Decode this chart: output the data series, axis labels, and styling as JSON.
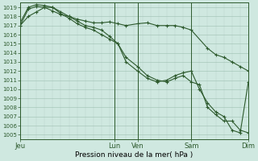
{
  "title": "",
  "xlabel": "Pression niveau de la mer( hPa )",
  "bg_color": "#cfe8e0",
  "line_color": "#2d5a2d",
  "marker_color": "#2d5a2d",
  "ylim": [
    1005,
    1019
  ],
  "ytick_min": 1005,
  "ytick_max": 1019,
  "xlim": [
    0,
    14
  ],
  "day_labels": [
    "Jeu",
    "Lun",
    "Ven",
    "Sam",
    "Dim"
  ],
  "day_positions": [
    0.0,
    5.8,
    7.2,
    10.5,
    14.0
  ],
  "series": [
    {
      "x": [
        0.0,
        0.5,
        1.0,
        1.5,
        2.0,
        2.5,
        3.0,
        3.5,
        4.0,
        4.5,
        5.0,
        5.5,
        6.0,
        6.5,
        7.2,
        7.8,
        8.4,
        9.0,
        9.5,
        10.0,
        10.5,
        11.5,
        12.0,
        12.5,
        13.0,
        13.5,
        14.0
      ],
      "y": [
        1017.0,
        1018.8,
        1019.1,
        1019.0,
        1018.6,
        1018.2,
        1018.0,
        1017.7,
        1017.5,
        1017.3,
        1017.3,
        1017.4,
        1017.2,
        1017.0,
        1017.2,
        1017.3,
        1017.0,
        1017.0,
        1017.0,
        1016.8,
        1016.5,
        1014.5,
        1013.8,
        1013.5,
        1013.0,
        1012.5,
        1012.0
      ]
    },
    {
      "x": [
        0.0,
        0.5,
        1.0,
        1.5,
        2.0,
        2.5,
        3.0,
        3.5,
        4.0,
        4.5,
        5.0,
        5.5,
        6.0,
        6.5,
        7.2,
        7.8,
        8.4,
        9.0,
        9.5,
        10.0,
        10.5,
        11.0,
        11.5,
        12.0,
        12.5,
        13.0,
        13.5,
        14.0
      ],
      "y": [
        1017.0,
        1018.0,
        1018.5,
        1019.0,
        1019.0,
        1018.3,
        1017.8,
        1017.2,
        1016.8,
        1016.5,
        1016.0,
        1015.5,
        1015.0,
        1013.5,
        1012.5,
        1011.5,
        1011.0,
        1010.8,
        1011.2,
        1011.5,
        1010.8,
        1010.5,
        1008.0,
        1007.2,
        1006.5,
        1006.5,
        1005.5,
        1005.2
      ]
    },
    {
      "x": [
        0.0,
        0.5,
        1.0,
        1.5,
        2.0,
        2.5,
        3.0,
        3.5,
        4.0,
        4.5,
        5.0,
        5.5,
        6.0,
        6.5,
        7.2,
        7.8,
        8.4,
        9.0,
        9.5,
        10.0,
        10.5,
        11.0,
        11.5,
        12.0,
        12.5,
        13.0,
        13.5,
        14.0
      ],
      "y": [
        1017.3,
        1019.0,
        1019.3,
        1019.2,
        1019.0,
        1018.5,
        1018.0,
        1017.5,
        1017.0,
        1016.8,
        1016.5,
        1015.8,
        1015.0,
        1013.0,
        1012.0,
        1011.2,
        1010.8,
        1011.0,
        1011.5,
        1011.8,
        1012.0,
        1010.0,
        1008.5,
        1007.5,
        1007.0,
        1005.5,
        1005.2,
        1010.8
      ]
    }
  ]
}
